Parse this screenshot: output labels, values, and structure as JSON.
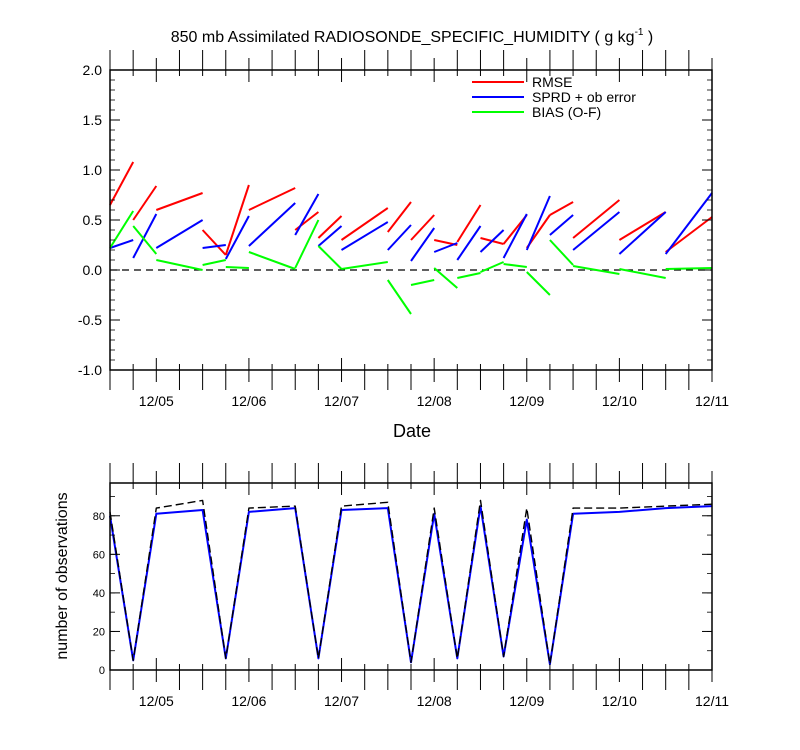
{
  "chart_data": [
    {
      "type": "line",
      "title": "850 mb Assimilated RADIOSONDE_SPECIFIC_HUMIDITY ( g kg",
      "title_exponent": "-1",
      "title_close": " )",
      "xlabel": "Date",
      "ylabel": "",
      "ylim": [
        -1.0,
        2.0
      ],
      "xlim": [
        "12/04 12:00",
        "12/11 00:00"
      ],
      "x_ticks": [
        "12/05",
        "12/06",
        "12/07",
        "12/08",
        "12/09",
        "12/10",
        "12/11"
      ],
      "y_ticks": [
        "-1.0",
        "-0.5",
        "0.0",
        "0.5",
        "1.0",
        "1.5",
        "2.0"
      ],
      "legend_position": "top-right",
      "zero_line": true,
      "series": [
        {
          "name": "RMSE",
          "color": "#ff0000",
          "segments": [
            {
              "x": [
                "12/04 12:00",
                "12/04 18:00"
              ],
              "y": [
                0.65,
                1.08
              ]
            },
            {
              "x": [
                "12/04 18:00",
                "12/05 00:00"
              ],
              "y": [
                0.5,
                0.84
              ]
            },
            {
              "x": [
                "12/05 00:00",
                "12/05 12:00"
              ],
              "y": [
                0.6,
                0.77
              ]
            },
            {
              "x": [
                "12/05 12:00",
                "12/05 18:00"
              ],
              "y": [
                0.4,
                0.15
              ]
            },
            {
              "x": [
                "12/05 18:00",
                "12/06 00:00"
              ],
              "y": [
                0.15,
                0.85
              ]
            },
            {
              "x": [
                "12/06 00:00",
                "12/06 12:00"
              ],
              "y": [
                0.6,
                0.82
              ]
            },
            {
              "x": [
                "12/06 12:00",
                "12/06 18:00"
              ],
              "y": [
                0.4,
                0.58
              ]
            },
            {
              "x": [
                "12/06 18:00",
                "12/07 00:00"
              ],
              "y": [
                0.32,
                0.54
              ]
            },
            {
              "x": [
                "12/07 00:00",
                "12/07 12:00"
              ],
              "y": [
                0.3,
                0.62
              ]
            },
            {
              "x": [
                "12/07 12:00",
                "12/07 18:00"
              ],
              "y": [
                0.38,
                0.68
              ]
            },
            {
              "x": [
                "12/07 18:00",
                "12/08 00:00"
              ],
              "y": [
                0.3,
                0.55
              ]
            },
            {
              "x": [
                "12/08 00:00",
                "12/08 06:00"
              ],
              "y": [
                0.3,
                0.25
              ]
            },
            {
              "x": [
                "12/08 06:00",
                "12/08 12:00"
              ],
              "y": [
                0.28,
                0.65
              ]
            },
            {
              "x": [
                "12/08 12:00",
                "12/08 18:00"
              ],
              "y": [
                0.32,
                0.26
              ]
            },
            {
              "x": [
                "12/08 18:00",
                "12/09 00:00"
              ],
              "y": [
                0.26,
                0.55
              ]
            },
            {
              "x": [
                "12/09 00:00",
                "12/09 06:00"
              ],
              "y": [
                0.22,
                0.55
              ]
            },
            {
              "x": [
                "12/09 06:00",
                "12/09 12:00"
              ],
              "y": [
                0.55,
                0.68
              ]
            },
            {
              "x": [
                "12/09 12:00",
                "12/10 00:00"
              ],
              "y": [
                0.32,
                0.7
              ]
            },
            {
              "x": [
                "12/10 00:00",
                "12/10 12:00"
              ],
              "y": [
                0.3,
                0.58
              ]
            },
            {
              "x": [
                "12/10 12:00",
                "12/11 00:00"
              ],
              "y": [
                0.18,
                0.53
              ]
            }
          ]
        },
        {
          "name": "SPRD + ob error",
          "color": "#0000ff",
          "segments": [
            {
              "x": [
                "12/04 12:00",
                "12/04 18:00"
              ],
              "y": [
                0.22,
                0.3
              ]
            },
            {
              "x": [
                "12/04 18:00",
                "12/05 00:00"
              ],
              "y": [
                0.12,
                0.56
              ]
            },
            {
              "x": [
                "12/05 00:00",
                "12/05 12:00"
              ],
              "y": [
                0.22,
                0.5
              ]
            },
            {
              "x": [
                "12/05 12:00",
                "12/05 18:00"
              ],
              "y": [
                0.22,
                0.25
              ]
            },
            {
              "x": [
                "12/05 18:00",
                "12/06 00:00"
              ],
              "y": [
                0.11,
                0.54
              ]
            },
            {
              "x": [
                "12/06 00:00",
                "12/06 12:00"
              ],
              "y": [
                0.24,
                0.67
              ]
            },
            {
              "x": [
                "12/06 12:00",
                "12/06 18:00"
              ],
              "y": [
                0.35,
                0.76
              ]
            },
            {
              "x": [
                "12/06 18:00",
                "12/07 00:00"
              ],
              "y": [
                0.24,
                0.44
              ]
            },
            {
              "x": [
                "12/07 00:00",
                "12/07 12:00"
              ],
              "y": [
                0.2,
                0.48
              ]
            },
            {
              "x": [
                "12/07 12:00",
                "12/07 18:00"
              ],
              "y": [
                0.2,
                0.45
              ]
            },
            {
              "x": [
                "12/07 18:00",
                "12/08 00:00"
              ],
              "y": [
                0.09,
                0.42
              ]
            },
            {
              "x": [
                "12/08 00:00",
                "12/08 06:00"
              ],
              "y": [
                0.18,
                0.27
              ]
            },
            {
              "x": [
                "12/08 06:00",
                "12/08 12:00"
              ],
              "y": [
                0.1,
                0.44
              ]
            },
            {
              "x": [
                "12/08 12:00",
                "12/08 18:00"
              ],
              "y": [
                0.18,
                0.4
              ]
            },
            {
              "x": [
                "12/08 18:00",
                "12/09 00:00"
              ],
              "y": [
                0.12,
                0.56
              ]
            },
            {
              "x": [
                "12/09 00:00",
                "12/09 06:00"
              ],
              "y": [
                0.2,
                0.74
              ]
            },
            {
              "x": [
                "12/09 06:00",
                "12/09 12:00"
              ],
              "y": [
                0.35,
                0.55
              ]
            },
            {
              "x": [
                "12/09 12:00",
                "12/10 00:00"
              ],
              "y": [
                0.2,
                0.58
              ]
            },
            {
              "x": [
                "12/10 00:00",
                "12/10 12:00"
              ],
              "y": [
                0.16,
                0.58
              ]
            },
            {
              "x": [
                "12/10 12:00",
                "12/11 00:00"
              ],
              "y": [
                0.16,
                0.77
              ]
            }
          ]
        },
        {
          "name": "BIAS (O-F)",
          "color": "#00ff00",
          "segments": [
            {
              "x": [
                "12/04 12:00",
                "12/04 18:00"
              ],
              "y": [
                0.22,
                0.59
              ]
            },
            {
              "x": [
                "12/04 18:00",
                "12/05 00:00"
              ],
              "y": [
                0.44,
                0.16
              ]
            },
            {
              "x": [
                "12/05 00:00",
                "12/05 12:00"
              ],
              "y": [
                0.1,
                0.0
              ]
            },
            {
              "x": [
                "12/05 12:00",
                "12/05 18:00"
              ],
              "y": [
                0.05,
                0.1
              ]
            },
            {
              "x": [
                "12/05 18:00",
                "12/06 00:00"
              ],
              "y": [
                0.03,
                0.02
              ]
            },
            {
              "x": [
                "12/06 00:00",
                "12/06 12:00"
              ],
              "y": [
                0.18,
                0.01
              ]
            },
            {
              "x": [
                "12/06 12:00",
                "12/06 18:00"
              ],
              "y": [
                0.02,
                0.5
              ]
            },
            {
              "x": [
                "12/06 18:00",
                "12/07 00:00"
              ],
              "y": [
                0.24,
                0.01
              ]
            },
            {
              "x": [
                "12/07 00:00",
                "12/07 12:00"
              ],
              "y": [
                0.01,
                0.08
              ]
            },
            {
              "x": [
                "12/07 12:00",
                "12/07 18:00"
              ],
              "y": [
                -0.1,
                -0.44
              ]
            },
            {
              "x": [
                "12/07 18:00",
                "12/08 00:00"
              ],
              "y": [
                -0.15,
                -0.1
              ]
            },
            {
              "x": [
                "12/08 00:00",
                "12/08 06:00"
              ],
              "y": [
                0.02,
                -0.18
              ]
            },
            {
              "x": [
                "12/08 06:00",
                "12/08 12:00"
              ],
              "y": [
                -0.08,
                -0.03
              ]
            },
            {
              "x": [
                "12/08 12:00",
                "12/08 18:00"
              ],
              "y": [
                -0.02,
                0.08
              ]
            },
            {
              "x": [
                "12/08 18:00",
                "12/09 00:00"
              ],
              "y": [
                0.06,
                0.03
              ]
            },
            {
              "x": [
                "12/09 00:00",
                "12/09 06:00"
              ],
              "y": [
                -0.02,
                -0.25
              ]
            },
            {
              "x": [
                "12/09 06:00",
                "12/09 12:00"
              ],
              "y": [
                0.3,
                0.05
              ]
            },
            {
              "x": [
                "12/09 12:00",
                "12/10 00:00"
              ],
              "y": [
                0.04,
                -0.04
              ]
            },
            {
              "x": [
                "12/10 00:00",
                "12/10 12:00"
              ],
              "y": [
                0.01,
                -0.08
              ]
            },
            {
              "x": [
                "12/10 12:00",
                "12/11 00:00"
              ],
              "y": [
                0.01,
                0.02
              ]
            }
          ]
        }
      ]
    },
    {
      "type": "line",
      "title": "",
      "xlabel": "",
      "ylabel": "number of observations",
      "ylim": [
        0,
        97
      ],
      "xlim": [
        "12/04 12:00",
        "12/11 00:00"
      ],
      "x_ticks": [
        "12/05",
        "12/06",
        "12/07",
        "12/08",
        "12/09",
        "12/10",
        "12/11"
      ],
      "y_ticks": [
        "0",
        "20",
        "40",
        "60",
        "80"
      ],
      "series": [
        {
          "name": "",
          "color": "#0000ff",
          "style": "solid",
          "x": [
            "12/04 12:00",
            "12/04 18:00",
            "12/05 00:00",
            "12/05 12:00",
            "12/05 18:00",
            "12/06 00:00",
            "12/06 12:00",
            "12/06 18:00",
            "12/07 00:00",
            "12/07 12:00",
            "12/07 18:00",
            "12/08 00:00",
            "12/08 06:00",
            "12/08 12:00",
            "12/08 18:00",
            "12/09 00:00",
            "12/09 06:00",
            "12/09 12:00",
            "12/10 00:00",
            "12/10 12:00",
            "12/11 00:00"
          ],
          "y": [
            80,
            5,
            81,
            83,
            6,
            82,
            84,
            6,
            83,
            84,
            4,
            81,
            6,
            85,
            7,
            78,
            3,
            81,
            82,
            84,
            85
          ]
        },
        {
          "name": "",
          "color": "#000000",
          "style": "dashed",
          "x": [
            "12/04 12:00",
            "12/04 18:00",
            "12/05 00:00",
            "12/05 12:00",
            "12/05 18:00",
            "12/06 00:00",
            "12/06 12:00",
            "12/06 18:00",
            "12/07 00:00",
            "12/07 12:00",
            "12/07 18:00",
            "12/08 00:00",
            "12/08 06:00",
            "12/08 12:00",
            "12/08 18:00",
            "12/09 00:00",
            "12/09 06:00",
            "12/09 12:00",
            "12/10 00:00",
            "12/10 12:00",
            "12/11 00:00"
          ],
          "y": [
            82,
            5,
            84,
            88,
            6,
            84,
            85,
            6,
            85,
            87,
            4,
            84,
            6,
            88,
            7,
            84,
            3,
            84,
            84,
            85,
            86
          ]
        }
      ]
    }
  ]
}
